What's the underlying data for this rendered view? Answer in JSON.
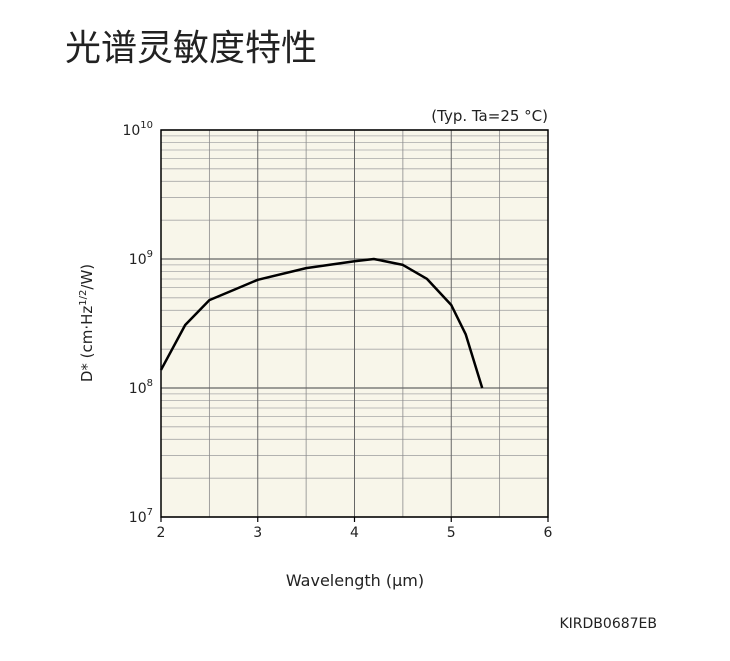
{
  "chart_data": {
    "type": "line",
    "title": "光谱灵敏度特性",
    "annotation": "(Typ. Ta=25 °C)",
    "code": "KIRDB0687EB",
    "xlabel": "Wavelength (μm)",
    "ylabel": {
      "text": "D* (cm·Hz",
      "superscript": "1/2",
      "suffix": "/W)"
    },
    "log_y": true,
    "grid": true,
    "plot_background": "#f8f6ea",
    "xlim": [
      2,
      6
    ],
    "xticks": [
      2,
      3,
      4,
      5,
      6
    ],
    "xminor": [
      2.5,
      3.5,
      4.5,
      5.5
    ],
    "ylim": [
      10000000,
      10000000000
    ],
    "yticks": [
      {
        "value": 10000000,
        "label": "10",
        "exponent": "7"
      },
      {
        "value": 100000000,
        "label": "10",
        "exponent": "8"
      },
      {
        "value": 1000000000,
        "label": "10",
        "exponent": "9"
      },
      {
        "value": 10000000000,
        "label": "10",
        "exponent": "10"
      }
    ],
    "series": [
      {
        "color": "#000000",
        "x": [
          2.0,
          2.25,
          2.5,
          2.75,
          3.0,
          3.5,
          4.0,
          4.2,
          4.5,
          4.75,
          5.0,
          5.15,
          5.32
        ],
        "values": [
          138000000,
          308000000,
          480000000,
          575000000,
          690000000,
          850000000,
          960000000,
          1000000000,
          900000000,
          700000000,
          440000000,
          260000000,
          100000000
        ]
      }
    ]
  }
}
